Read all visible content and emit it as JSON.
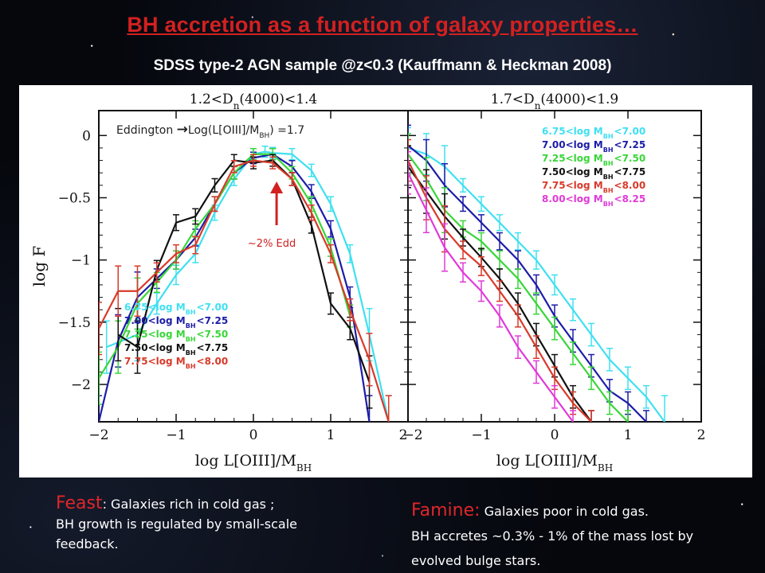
{
  "header": {
    "title": "BH accretion as a function of galaxy properties…",
    "subtitle": "SDSS type-2 AGN sample @z<0.3 (Kauffmann & Heckman 2008)"
  },
  "captions": {
    "feast_keyword": "Feast",
    "feast_line1": ": Galaxies rich in cold gas ;",
    "feast_line2": "BH growth is regulated by small-scale",
    "feast_line3": "feedback.",
    "famine_keyword": "Famine:",
    "famine_line1": " Galaxies poor in cold gas.",
    "famine_line2": "BH accretes ~0.3% - 1% of the mass lost by",
    "famine_line3": "evolved bulge stars."
  },
  "colors": {
    "title": "#d42020",
    "cyan": "#3fe0f0",
    "blue": "#1c1ca8",
    "green": "#39d639",
    "black": "#111111",
    "red": "#d83a2a",
    "magenta": "#e03ad8"
  },
  "chart_data": [
    {
      "type": "line",
      "panel_title": "1.2<D_n(4000)<1.4",
      "xlabel": "log L[OIII]/M_BH",
      "ylabel": "log F",
      "xlim": [
        -2,
        2
      ],
      "ylim": [
        -2.3,
        0.2
      ],
      "xticks": [
        "-2",
        "-1",
        "0",
        "1",
        "2"
      ],
      "yticks": [
        "0",
        "-0.5",
        "-1",
        "-1.5",
        "-2"
      ],
      "legend_position": "bottom-left",
      "annotations": {
        "eddington_prefix": "Eddington ",
        "eddington_arrow": "→",
        "eddington_expr": "Log(L[OIII]/M",
        "eddington_sub": "BH",
        "eddington_suffix": ")  =1.7",
        "arrow_label": "~2% Edd",
        "arrow_x": 0.3
      },
      "series": [
        {
          "name": "6.75<log M_BH<7.00",
          "color_key": "cyan",
          "x": [
            -1.9,
            -1.5,
            -1.25,
            -1.0,
            -0.75,
            -0.5,
            -0.25,
            0.0,
            0.15,
            0.25,
            0.5,
            0.75,
            1.0,
            1.25,
            1.5,
            1.75
          ],
          "y": [
            -1.7,
            -1.6,
            -1.35,
            -1.12,
            -0.95,
            -0.62,
            -0.35,
            -0.15,
            -0.13,
            -0.14,
            -0.15,
            -0.28,
            -0.55,
            -0.95,
            -1.6,
            -2.3
          ]
        },
        {
          "name": "7.00<log M_BH<7.25",
          "color_key": "blue",
          "x": [
            -2.0,
            -1.75,
            -1.5,
            -1.25,
            -1.0,
            -0.75,
            -0.5,
            -0.25,
            0.0,
            0.25,
            0.5,
            0.75,
            1.0,
            1.25,
            1.5
          ],
          "y": [
            -2.3,
            -1.65,
            -1.3,
            -1.15,
            -1.0,
            -0.82,
            -0.55,
            -0.3,
            -0.18,
            -0.15,
            -0.25,
            -0.45,
            -0.75,
            -1.3,
            -2.3
          ]
        },
        {
          "name": "7.25<log M_BH<7.50",
          "color_key": "green",
          "x": [
            -2.0,
            -1.75,
            -1.5,
            -1.25,
            -1.0,
            -0.75,
            -0.5,
            -0.25,
            0.0,
            0.25,
            0.5,
            0.75,
            1.0,
            1.25
          ],
          "y": [
            -1.95,
            -1.7,
            -1.35,
            -1.18,
            -1.0,
            -0.75,
            -0.55,
            -0.3,
            -0.15,
            -0.15,
            -0.3,
            -0.55,
            -0.9,
            -1.45
          ]
        },
        {
          "name": "7.50<log M_BH<7.75",
          "color_key": "black",
          "x": [
            -1.75,
            -1.5,
            -1.25,
            -1.0,
            -0.75,
            -0.5,
            -0.25,
            0.0,
            0.25,
            0.5,
            0.75,
            1.0,
            1.25,
            1.5
          ],
          "y": [
            -1.6,
            -1.7,
            -1.08,
            -0.7,
            -0.65,
            -0.4,
            -0.2,
            -0.22,
            -0.2,
            -0.35,
            -0.72,
            -1.35,
            -1.55,
            -1.98
          ]
        },
        {
          "name": "7.75<log M_BH<8.00",
          "color_key": "red",
          "x": [
            -2.0,
            -1.75,
            -1.5,
            -1.25,
            -1.0,
            -0.75,
            -0.5,
            -0.25,
            0.0,
            0.25,
            0.5,
            0.75,
            1.0,
            1.25,
            1.5,
            1.75
          ],
          "y": [
            -1.55,
            -1.25,
            -1.25,
            -1.1,
            -0.95,
            -0.88,
            -0.55,
            -0.25,
            -0.2,
            -0.22,
            -0.35,
            -0.62,
            -0.95,
            -1.4,
            -1.8,
            -2.3
          ]
        }
      ]
    },
    {
      "type": "line",
      "panel_title": "1.7<D_n(4000)<1.9",
      "xlabel": "log L[OIII]/M_BH",
      "xlim": [
        -2,
        2
      ],
      "ylim": [
        -2.3,
        0.2
      ],
      "xticks": [
        "-2",
        "-1",
        "0",
        "1",
        "2"
      ],
      "legend_position": "top-right",
      "series": [
        {
          "name": "6.75<log M_BH<7.00",
          "color_key": "cyan",
          "x": [
            -2.0,
            -1.75,
            -1.5,
            -1.25,
            -1.0,
            -0.75,
            -0.5,
            -0.25,
            0.0,
            0.25,
            0.5,
            0.75,
            1.0,
            1.25,
            1.5
          ],
          "y": [
            -0.1,
            -0.15,
            -0.25,
            -0.4,
            -0.55,
            -0.7,
            -0.85,
            -1.0,
            -1.2,
            -1.4,
            -1.6,
            -1.8,
            -1.95,
            -2.1,
            -2.3
          ]
        },
        {
          "name": "7.00<log M_BH<7.25",
          "color_key": "blue",
          "x": [
            -2.0,
            -1.75,
            -1.5,
            -1.25,
            -1.0,
            -0.75,
            -0.5,
            -0.25,
            0.0,
            0.25,
            0.5,
            0.75,
            1.0,
            1.25
          ],
          "y": [
            -0.08,
            -0.2,
            -0.4,
            -0.55,
            -0.7,
            -0.85,
            -1.0,
            -1.2,
            -1.45,
            -1.65,
            -1.85,
            -2.05,
            -2.15,
            -2.3
          ]
        },
        {
          "name": "7.25<log M_BH<7.50",
          "color_key": "green",
          "x": [
            -2.0,
            -1.75,
            -1.5,
            -1.25,
            -1.0,
            -0.75,
            -0.5,
            -0.25,
            0.0,
            0.25,
            0.5,
            0.75,
            1.0
          ],
          "y": [
            -0.15,
            -0.35,
            -0.6,
            -0.75,
            -0.85,
            -1.0,
            -1.15,
            -1.35,
            -1.55,
            -1.75,
            -1.95,
            -2.15,
            -2.3
          ]
        },
        {
          "name": "7.50<log M_BH<7.75",
          "color_key": "black",
          "x": [
            -2.0,
            -1.75,
            -1.5,
            -1.25,
            -1.0,
            -0.75,
            -0.5,
            -0.25,
            0.0,
            0.25,
            0.5
          ],
          "y": [
            -0.25,
            -0.45,
            -0.65,
            -0.82,
            -0.98,
            -1.15,
            -1.35,
            -1.6,
            -1.85,
            -2.1,
            -2.3
          ]
        },
        {
          "name": "7.75<log M_BH<8.00",
          "color_key": "red",
          "x": [
            -2.0,
            -1.75,
            -1.5,
            -1.25,
            -1.0,
            -0.75,
            -0.5,
            -0.25,
            0.0,
            0.25,
            0.5
          ],
          "y": [
            -0.2,
            -0.5,
            -0.75,
            -0.92,
            -1.05,
            -1.25,
            -1.45,
            -1.7,
            -1.95,
            -2.15,
            -2.3
          ]
        },
        {
          "name": "8.00<log M_BH<8.25",
          "color_key": "magenta",
          "x": [
            -2.0,
            -1.75,
            -1.5,
            -1.25,
            -1.0,
            -0.75,
            -0.5,
            -0.25,
            0.0,
            0.25
          ],
          "y": [
            -0.3,
            -0.6,
            -0.9,
            -1.1,
            -1.25,
            -1.45,
            -1.7,
            -1.9,
            -2.1,
            -2.3
          ]
        }
      ]
    }
  ]
}
